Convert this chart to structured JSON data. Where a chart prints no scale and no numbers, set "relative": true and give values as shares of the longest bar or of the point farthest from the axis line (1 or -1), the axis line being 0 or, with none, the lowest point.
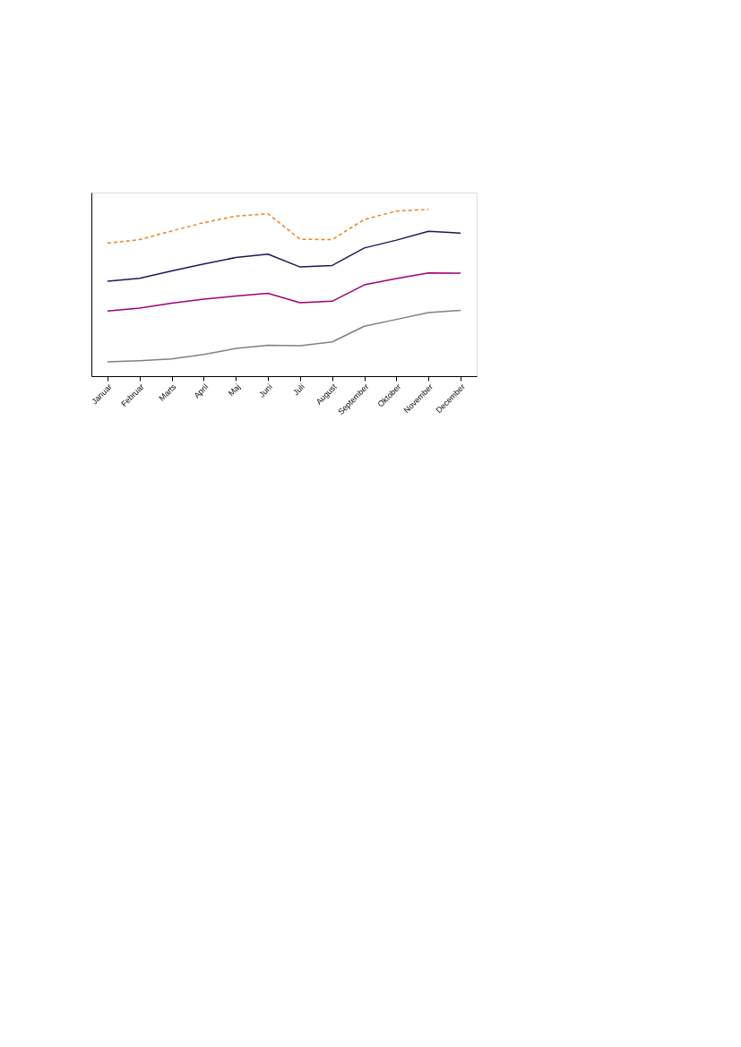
{
  "chart_data": {
    "type": "line",
    "relative": true,
    "tick_labels": "x",
    "grid": false,
    "categories": [
      "Januar",
      "Februar",
      "Marts",
      "April",
      "Maj",
      "Juni",
      "Juli",
      "August",
      "September",
      "Oktober",
      "November",
      "December"
    ],
    "series": [
      {
        "color": "#808080",
        "line_style": "solid",
        "values": [
          0.086,
          0.093,
          0.103,
          0.13,
          0.166,
          0.185,
          0.182,
          0.205,
          0.299,
          0.34,
          0.381,
          0.394
        ]
      },
      {
        "color": "#a0007a",
        "line_style": "solid",
        "values": [
          0.39,
          0.408,
          0.437,
          0.462,
          0.48,
          0.496,
          0.44,
          0.449,
          0.547,
          0.585,
          0.619,
          0.617
        ]
      },
      {
        "color": "#1a1a5a",
        "line_style": "solid",
        "values": [
          0.569,
          0.586,
          0.631,
          0.672,
          0.711,
          0.731,
          0.654,
          0.663,
          0.768,
          0.815,
          0.868,
          0.857
        ]
      },
      {
        "color": "#f08020",
        "line_style": "dashed",
        "values": [
          0.797,
          0.818,
          0.87,
          0.92,
          0.959,
          0.973,
          0.82,
          0.818,
          0.939,
          0.989,
          1,
          null
        ]
      }
    ]
  }
}
